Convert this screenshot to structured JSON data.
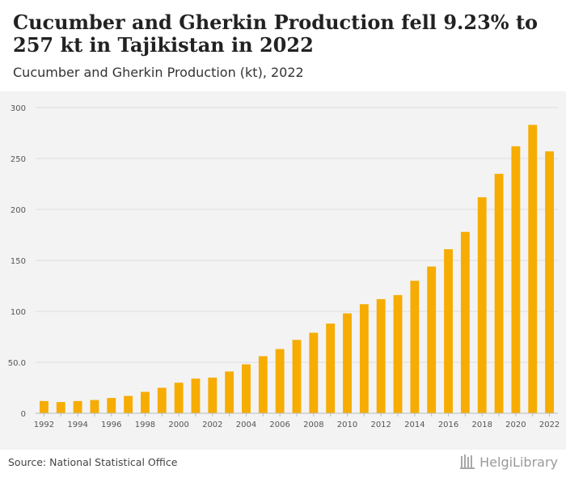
{
  "header": {
    "title": "Cucumber and Gherkin Production fell 9.23% to 257 kt in Tajikistan in 2022",
    "subtitle": "Cucumber and Gherkin Production (kt), 2022"
  },
  "footer": {
    "source": "Source: National Statistical Office",
    "logo_text": "HelgiLibrary"
  },
  "colors": {
    "bar": "#f6ac00",
    "grid": "#dddddd",
    "axis_text": "#555555",
    "plot_bg": "#f3f3f3"
  },
  "chart_data": {
    "type": "bar",
    "categories": [
      "1992",
      "1993",
      "1994",
      "1995",
      "1996",
      "1997",
      "1998",
      "1999",
      "2000",
      "2001",
      "2002",
      "2003",
      "2004",
      "2005",
      "2006",
      "2007",
      "2008",
      "2009",
      "2010",
      "2011",
      "2012",
      "2013",
      "2014",
      "2015",
      "2016",
      "2017",
      "2018",
      "2019",
      "2020",
      "2021",
      "2022"
    ],
    "x_tick_labels": [
      "1992",
      "",
      "1994",
      "",
      "1996",
      "",
      "1998",
      "",
      "2000",
      "",
      "2002",
      "",
      "2004",
      "",
      "2006",
      "",
      "2008",
      "",
      "2010",
      "",
      "2012",
      "",
      "2014",
      "",
      "2016",
      "",
      "2018",
      "",
      "2020",
      "",
      "2022"
    ],
    "values": [
      12,
      11,
      12,
      13,
      15,
      17,
      21,
      25,
      30,
      34,
      35,
      41,
      48,
      56,
      63,
      72,
      79,
      88,
      98,
      107,
      112,
      116,
      130,
      144,
      161,
      178,
      212,
      235,
      262,
      283,
      257
    ],
    "ylim": [
      0,
      300
    ],
    "y_ticks": [
      0,
      50,
      100,
      150,
      200,
      250,
      300
    ],
    "y_tick_labels": [
      "0",
      "50.0",
      "100",
      "150",
      "200",
      "250",
      "300"
    ],
    "xlabel": "",
    "ylabel": "",
    "grid": true
  }
}
